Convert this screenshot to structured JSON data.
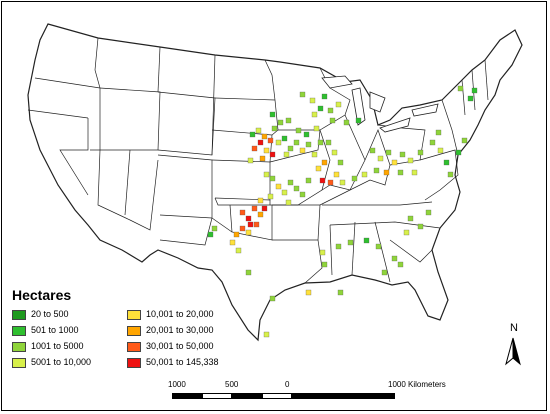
{
  "legend": {
    "title": "Hectares",
    "items": [
      {
        "label": "20 to 500",
        "color": "#1f9a1f"
      },
      {
        "label": "501 to 1000",
        "color": "#2fbf2f"
      },
      {
        "label": "1001 to 5000",
        "color": "#8fd43a"
      },
      {
        "label": "5001 to 10,000",
        "color": "#d8f04a"
      },
      {
        "label": "10,001 to 20,000",
        "color": "#ffe13a"
      },
      {
        "label": "20,001 to 30,000",
        "color": "#ffa500"
      },
      {
        "label": "30,001 to 50,000",
        "color": "#ff5a1a"
      },
      {
        "label": "50,001 to 145,338",
        "color": "#ee1111"
      }
    ]
  },
  "north_arrow": {
    "label": "N"
  },
  "scale_bar": {
    "labels": [
      "1000",
      "500",
      "0",
      "1000 Kilometers"
    ]
  },
  "map": {
    "base": "Contiguous United States state boundaries",
    "land_color": "#ffffff",
    "border_color": "#222222"
  }
}
